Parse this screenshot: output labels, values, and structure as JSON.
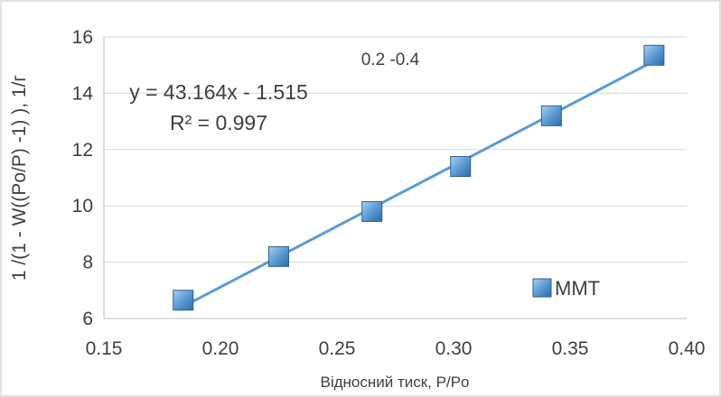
{
  "chart_data": {
    "type": "scatter",
    "annotation_top": "0.2 -0.4",
    "equation": "y = 43.164x - 1.515",
    "r_squared": "R² = 0.997",
    "xlabel": "Відносний тиск, P/Po",
    "ylabel": "1 /(1 - W((Po/P) -1) ), 1/г",
    "xlim": [
      0.15,
      0.4
    ],
    "ylim": [
      6,
      16
    ],
    "x_ticks": [
      0.15,
      0.2,
      0.25,
      0.3,
      0.35,
      0.4
    ],
    "x_tick_labels": [
      "0.15",
      "0.20",
      "0.25",
      "0.30",
      "0.35",
      "0.40"
    ],
    "y_ticks": [
      6,
      8,
      10,
      12,
      14,
      16
    ],
    "y_tick_labels": [
      "6",
      "8",
      "10",
      "12",
      "14",
      "16"
    ],
    "grid": "horizontal",
    "legend_position": "bottom-right",
    "series": [
      {
        "name": "MMT",
        "marker": "square",
        "color": "#5B9BD5",
        "points": [
          {
            "x": 0.184,
            "y": 6.65
          },
          {
            "x": 0.225,
            "y": 8.2
          },
          {
            "x": 0.265,
            "y": 9.8
          },
          {
            "x": 0.303,
            "y": 11.4
          },
          {
            "x": 0.342,
            "y": 13.2
          },
          {
            "x": 0.386,
            "y": 15.35
          }
        ]
      }
    ],
    "trendline": {
      "slope": 43.164,
      "intercept": -1.515,
      "x_range": [
        0.184,
        0.386
      ],
      "color": "#5B9BD5"
    }
  }
}
